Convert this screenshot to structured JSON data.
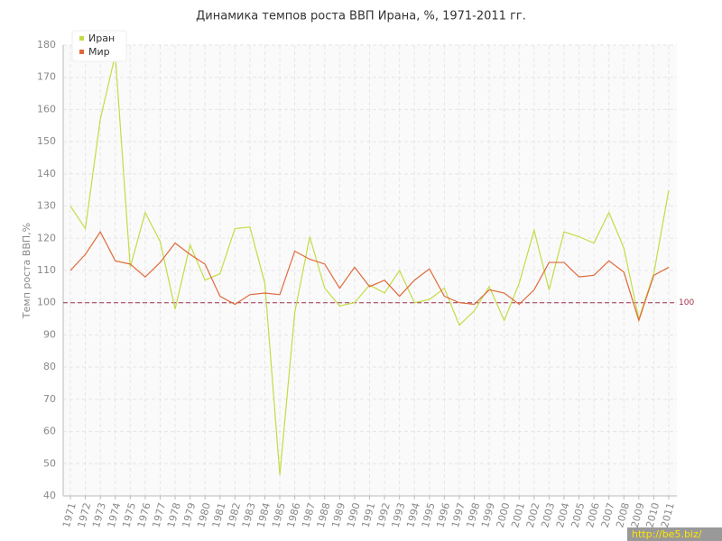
{
  "chart_data": {
    "type": "line",
    "title": "Динамика темпов роста ВВП Ирана, %, 1971-2011 гг.",
    "y_label": "Темп роста ВВП,%",
    "categories": [
      "1971",
      "1972",
      "1973",
      "1974",
      "1975",
      "1976",
      "1977",
      "1978",
      "1979",
      "1980",
      "1981",
      "1982",
      "1983",
      "1984",
      "1985",
      "1986",
      "1987",
      "1988",
      "1989",
      "1990",
      "1991",
      "1992",
      "1993",
      "1994",
      "1995",
      "1996",
      "1997",
      "1998",
      "1999",
      "2000",
      "2001",
      "2002",
      "2003",
      "2004",
      "2005",
      "2006",
      "2007",
      "2008",
      "2009",
      "2010",
      "2011"
    ],
    "series": [
      {
        "name": "Иран",
        "color": "#c3dc45",
        "values": [
          130,
          123,
          157,
          177,
          111,
          128,
          119,
          98,
          118,
          107,
          109,
          123,
          123.5,
          106,
          46.5,
          97,
          120.5,
          104.5,
          99,
          100,
          105.5,
          103,
          110,
          100,
          101,
          104.5,
          93,
          97.5,
          105,
          94.5,
          106,
          122.5,
          104,
          122,
          120.5,
          118.5,
          128,
          117,
          95,
          109,
          135
        ]
      },
      {
        "name": "Мир",
        "color": "#e0693a",
        "values": [
          110,
          115,
          122,
          113,
          112,
          108,
          112.5,
          118.5,
          115,
          112,
          102,
          99.5,
          102.5,
          103,
          102.5,
          116,
          113.5,
          112,
          104.5,
          111,
          105,
          107,
          102,
          107,
          110.5,
          102,
          100,
          99.5,
          104,
          103,
          99.5,
          104,
          112.5,
          112.5,
          108,
          108.5,
          113,
          109.5,
          94.5,
          108.5,
          111
        ]
      }
    ],
    "ylim": [
      40,
      180
    ],
    "yticks": [
      40,
      50,
      60,
      70,
      80,
      90,
      100,
      110,
      120,
      130,
      140,
      150,
      160,
      170,
      180
    ],
    "hline": 100,
    "hline_color": "#a0304a",
    "grid": true,
    "legend": "top-left",
    "watermark": "http://be5.biz/"
  }
}
